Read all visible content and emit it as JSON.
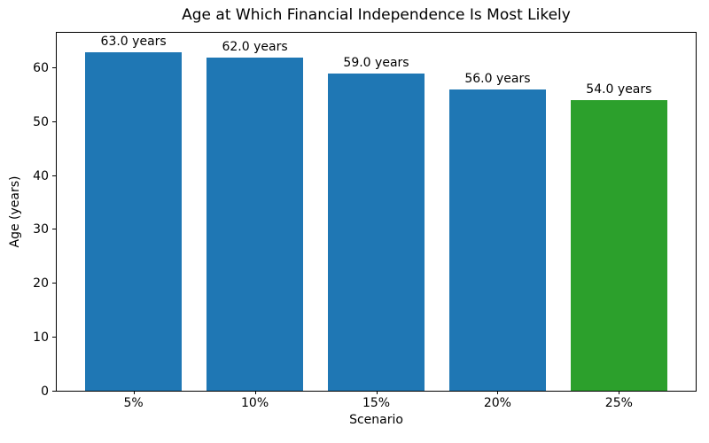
{
  "chart_data": {
    "type": "bar",
    "title": "Age at Which Financial Independence Is Most Likely",
    "xlabel": "Scenario",
    "ylabel": "Age (years)",
    "categories": [
      "5%",
      "10%",
      "15%",
      "20%",
      "25%"
    ],
    "values": [
      63.0,
      62.0,
      59.0,
      56.0,
      54.0
    ],
    "bar_labels": [
      "63.0 years",
      "62.0 years",
      "59.0 years",
      "56.0 years",
      "54.0 years"
    ],
    "bar_colors": [
      "#1f77b4",
      "#1f77b4",
      "#1f77b4",
      "#1f77b4",
      "#2ca02c"
    ],
    "highlight_color": "#2ca02c",
    "default_color": "#1f77b4",
    "yticks": [
      0,
      10,
      20,
      30,
      40,
      50,
      60
    ],
    "ylim": [
      0,
      66.7
    ],
    "grid": false,
    "legend": "none",
    "bar_width_fraction": 0.8
  }
}
